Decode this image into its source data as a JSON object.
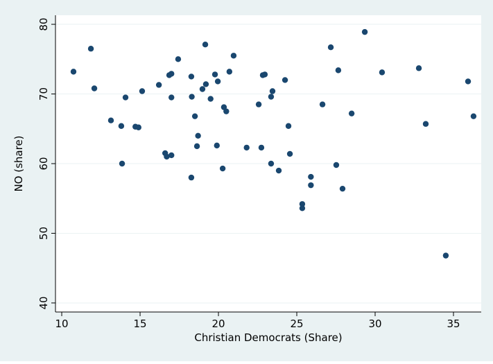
{
  "chart_data": {
    "type": "scatter",
    "xlabel": "Christian Democrats (Share)",
    "ylabel": "NO (share)",
    "x": [
      10.75,
      11.86,
      12.08,
      13.14,
      13.8,
      13.85,
      14.07,
      14.7,
      14.9,
      15.13,
      16.2,
      16.6,
      16.7,
      17.0,
      16.86,
      17.0,
      17.0,
      17.43,
      18.27,
      18.3,
      18.27,
      18.5,
      18.7,
      18.63,
      18.98,
      19.16,
      19.2,
      19.5,
      19.78,
      19.96,
      19.9,
      20.27,
      20.35,
      20.5,
      20.7,
      20.97,
      21.8,
      22.57,
      22.74,
      22.83,
      22.96,
      23.36,
      23.36,
      23.45,
      23.85,
      24.25,
      24.47,
      24.56,
      25.35,
      25.35,
      25.9,
      25.9,
      26.64,
      27.17,
      27.52,
      27.65,
      27.92,
      28.5,
      29.34,
      30.44,
      32.79,
      33.23,
      34.51,
      35.93,
      36.28
    ],
    "values": [
      73.2,
      76.5,
      70.8,
      66.2,
      65.4,
      60.0,
      69.5,
      65.3,
      65.2,
      70.4,
      71.3,
      61.5,
      61.0,
      61.2,
      72.7,
      72.9,
      69.5,
      75.0,
      72.5,
      69.6,
      58.0,
      66.8,
      64.0,
      62.5,
      70.7,
      77.1,
      71.4,
      69.3,
      72.8,
      71.8,
      62.6,
      59.3,
      68.1,
      67.5,
      73.2,
      75.5,
      62.3,
      68.5,
      62.3,
      72.7,
      72.8,
      60.0,
      69.6,
      70.4,
      59.0,
      72.0,
      65.4,
      61.4,
      54.2,
      53.6,
      58.1,
      56.9,
      68.5,
      76.7,
      59.8,
      73.4,
      56.4,
      67.2,
      78.9,
      73.1,
      73.7,
      65.7,
      46.8,
      71.8,
      66.8
    ],
    "color": "#1a476f",
    "xlim": [
      9.6,
      36.77
    ],
    "ylim": [
      38.7,
      81.3
    ],
    "xticks": [
      10,
      15,
      20,
      25,
      30,
      35
    ],
    "yticks": [
      40,
      50,
      60,
      70,
      80
    ],
    "grid": true
  }
}
